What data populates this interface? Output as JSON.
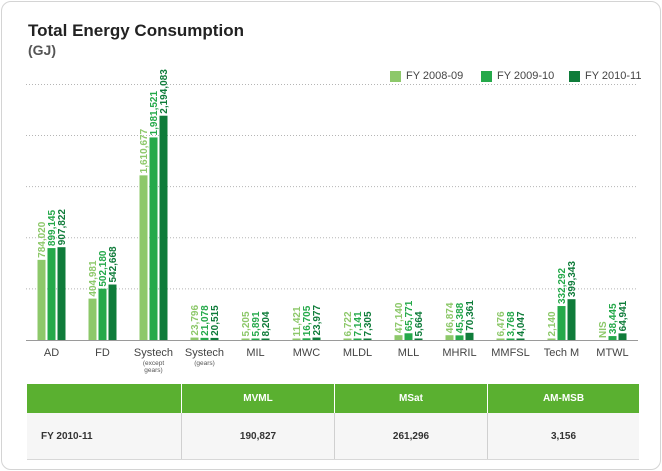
{
  "title": "Total Energy Consumption",
  "subtitle": "(GJ)",
  "colors": {
    "fy0809": "#8dc86a",
    "fy0910": "#25a94a",
    "fy1011": "#0f7c3a",
    "table_header": "#5ab030"
  },
  "chart_data": {
    "type": "bar",
    "title": "Total Energy Consumption",
    "subtitle": "(GJ)",
    "ylim": [
      0,
      2700000
    ],
    "grid": true,
    "legend_position": "top-right",
    "categories": [
      {
        "label": "AD",
        "sub": ""
      },
      {
        "label": "FD",
        "sub": ""
      },
      {
        "label": "Systech",
        "sub": "(except gears)"
      },
      {
        "label": "Systech",
        "sub": "(gears)"
      },
      {
        "label": "MIL",
        "sub": ""
      },
      {
        "label": "MWC",
        "sub": ""
      },
      {
        "label": "MLDL",
        "sub": ""
      },
      {
        "label": "MLL",
        "sub": ""
      },
      {
        "label": "MHRIL",
        "sub": ""
      },
      {
        "label": "MMFSL",
        "sub": ""
      },
      {
        "label": "Tech M",
        "sub": ""
      },
      {
        "label": "MTWL",
        "sub": ""
      }
    ],
    "series": [
      {
        "name": "FY 2008-09",
        "values": [
          784020,
          404981,
          1610677,
          23796,
          5205,
          11421,
          6722,
          47140,
          46874,
          6476,
          2140,
          null
        ],
        "labels": [
          "784,020",
          "404,981",
          "1,610,677",
          "23,796",
          "5,205",
          "11,421",
          "6,722",
          "47,140",
          "46,874",
          "6,476",
          "2,140",
          "NIS"
        ]
      },
      {
        "name": "FY 2009-10",
        "values": [
          899145,
          502180,
          1981521,
          21078,
          5891,
          16705,
          7141,
          65771,
          45388,
          3768,
          332292,
          38445
        ],
        "labels": [
          "899,145",
          "502,180",
          "1,981,521",
          "21,078",
          "5,891",
          "16,705",
          "7,141",
          "65,771",
          "45,388",
          "3,768",
          "332,292",
          "38,445"
        ]
      },
      {
        "name": "FY 2010-11",
        "values": [
          907822,
          542668,
          2194083,
          20515,
          8204,
          23977,
          7305,
          5664,
          70361,
          4047,
          399343,
          64941
        ],
        "labels": [
          "907,822",
          "542,668",
          "2,194,083",
          "20,515",
          "8,204",
          "23,977",
          "7,305",
          "5,664",
          "70,361",
          "4,047",
          "399,343",
          "64,941"
        ]
      }
    ]
  },
  "table": {
    "headers": [
      "",
      "MVML",
      "MSat",
      "AM-MSB"
    ],
    "rows": [
      [
        "FY 2010-11",
        "190,827",
        "261,296",
        "3,156"
      ]
    ]
  }
}
